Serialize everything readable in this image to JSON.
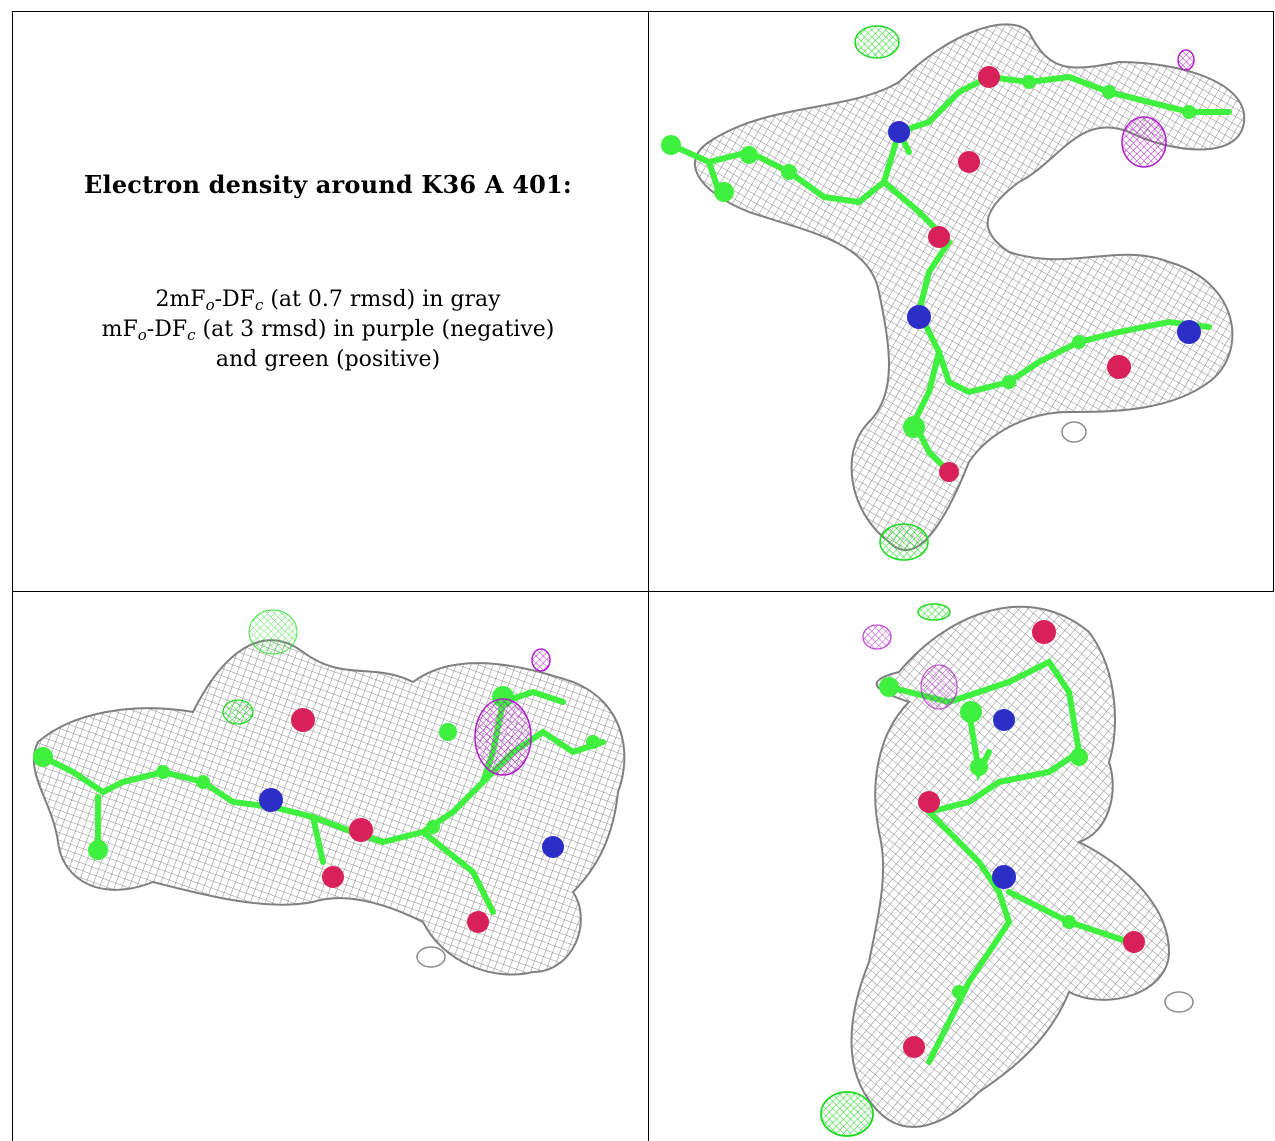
{
  "caption": {
    "title": "Electron density around K36 A 401:",
    "line1": {
      "prefix": "2mF",
      "sub1": "o",
      "mid": "-DF",
      "sub2": "c",
      "suffix": " (at 0.7 rmsd) in gray"
    },
    "line2": {
      "prefix": "mF",
      "sub1": "o",
      "mid": "-DF",
      "sub2": "c",
      "suffix": " (at 3 rmsd) in purple (negative)"
    },
    "line3": "and green (positive)"
  },
  "colors": {
    "mesh_gray": "#8a8a8a",
    "carbon_green": "#3ff03f",
    "oxygen_red": "#d8205a",
    "nitrogen_blue": "#2d2dc8",
    "neg_purple": "#b020c8",
    "pos_green": "#22d822"
  },
  "panels": [
    {
      "name": "view-top-right"
    },
    {
      "name": "view-bottom-left"
    },
    {
      "name": "view-bottom-right"
    }
  ]
}
